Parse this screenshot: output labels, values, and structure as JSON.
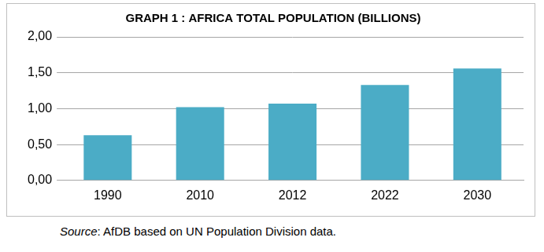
{
  "chart_data": {
    "type": "bar",
    "title": "GRAPH 1 : AFRICA TOTAL POPULATION (BILLIONS)",
    "source": "Source: AfDB based on UN Population Division data.",
    "categories": [
      "1990",
      "2010",
      "2012",
      "2022",
      "2030"
    ],
    "values": [
      0.63,
      1.02,
      1.07,
      1.33,
      1.56
    ],
    "color": "#4bacc6",
    "ylim": [
      0,
      2
    ],
    "yticks": [
      {
        "value": 0,
        "label": "0,00"
      },
      {
        "value": 0.5,
        "label": "0,50"
      },
      {
        "value": 1,
        "label": "1,00"
      },
      {
        "value": 1.5,
        "label": "1,50"
      },
      {
        "value": 2,
        "label": "2,00"
      }
    ],
    "grid": true
  }
}
